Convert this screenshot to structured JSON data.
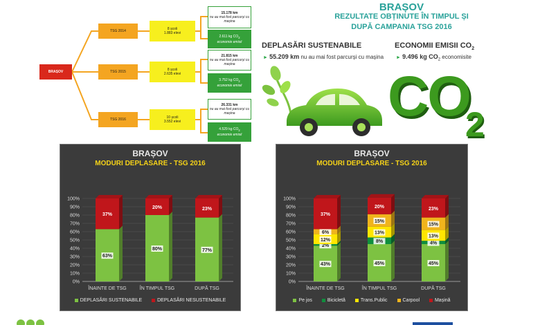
{
  "tree": {
    "root": "BRAȘOV",
    "years": [
      {
        "label": "TSG 2014",
        "schools": "8 școli",
        "students": "1.883 elevi",
        "km": "15.178 km",
        "km_note": "nu au mai fost parcurși cu mașina",
        "co2": "2.611 kg CO",
        "co2_sub": "2",
        "co2_note": "economie emisii"
      },
      {
        "label": "TSG 2015",
        "schools": "8 școli",
        "students": "2.635 elevi",
        "km": "21.815 km",
        "km_note": "nu au mai fost parcurși cu mașina",
        "co2": "3.752 kg CO",
        "co2_sub": "2",
        "co2_note": "economie emisii"
      },
      {
        "label": "TSG 2016",
        "schools": "10 școli",
        "students": "3.552 elevi",
        "km": "26.331 km",
        "km_note": "nu au mai fost parcurși cu mașina",
        "co2": "4.529 kg CO",
        "co2_sub": "2",
        "co2_note": "economie emisii"
      }
    ]
  },
  "infographic": {
    "city": "BRAȘOV",
    "subtitle1": "REZULTATE OBȚINUTE ÎN TIMPUL ȘI",
    "subtitle2": "DUPĂ CAMPANIA TSG 2016",
    "left_title": "DEPLASĂRI SUSTENABILE",
    "left_value": "55.209 km",
    "left_note": "nu au mai fost parcurși cu mașina",
    "right_title": "ECONOMII EMISII CO",
    "right_title_sub": "2",
    "right_value": "9.496 kg CO",
    "right_value_sub": "2",
    "right_note": "economisite",
    "co2_big": "CO",
    "co2_big_sub": "2"
  },
  "colors": {
    "green": "#35a13a",
    "bar_green": "#7dc242",
    "bar_red": "#c0161b",
    "dark_green": "#0f8f3d",
    "yellow": "#ffe600",
    "amber": "#f0b41c",
    "title_white": "#e8e8e8",
    "title_yellow": "#f5d218",
    "teal": "#2aa29a"
  },
  "chart_data": [
    {
      "type": "bar",
      "stacked": true,
      "title": "BRAȘOV",
      "subtitle": "MODURI DEPLASARE - TSG 2016",
      "categories": [
        "ÎNAINTE DE TSG",
        "ÎN TIMPUL TSG",
        "DUPĂ TSG"
      ],
      "yticks": [
        "0%",
        "10%",
        "20%",
        "30%",
        "40%",
        "50%",
        "60%",
        "70%",
        "80%",
        "90%",
        "100%"
      ],
      "ylim": [
        0,
        100
      ],
      "series": [
        {
          "name": "DEPLASĂRI SUSTENABILE",
          "color": "#7dc242",
          "values": [
            63,
            80,
            77
          ],
          "labels": [
            "63%",
            "80%",
            "77%"
          ]
        },
        {
          "name": "DEPLASĂRI NESUSTENABILE",
          "color": "#c0161b",
          "values": [
            37,
            20,
            23
          ],
          "labels": [
            "37%",
            "20%",
            "23%"
          ]
        }
      ]
    },
    {
      "type": "bar",
      "stacked": true,
      "title": "BRAȘOV",
      "subtitle": "MODURI DEPLASARE - TSG 2016",
      "categories": [
        "ÎNAINTE DE TSG",
        "ÎN TIMPUL TSG",
        "DUPĂ TSG"
      ],
      "yticks": [
        "0%",
        "10%",
        "20%",
        "30%",
        "40%",
        "50%",
        "60%",
        "70%",
        "80%",
        "90%",
        "100%"
      ],
      "ylim": [
        0,
        100
      ],
      "series": [
        {
          "name": "Pe jos",
          "color": "#7dc242",
          "values": [
            43,
            45,
            45
          ],
          "labels": [
            "43%",
            "45%",
            "45%"
          ]
        },
        {
          "name": "Bicicletă",
          "color": "#0f8f3d",
          "values": [
            2,
            8,
            4
          ],
          "labels": [
            "2%",
            "8%",
            "4%"
          ]
        },
        {
          "name": "Trans.Public",
          "color": "#ffe600",
          "values": [
            12,
            13,
            13
          ],
          "labels": [
            "12%",
            "13%",
            "13%"
          ]
        },
        {
          "name": "Carpool",
          "color": "#f0b41c",
          "values": [
            6,
            15,
            15
          ],
          "labels": [
            "6%",
            "15%",
            "15%"
          ]
        },
        {
          "name": "Mașină",
          "color": "#c0161b",
          "values": [
            37,
            20,
            23
          ],
          "labels": [
            "37%",
            "20%",
            "23%"
          ]
        }
      ]
    }
  ]
}
